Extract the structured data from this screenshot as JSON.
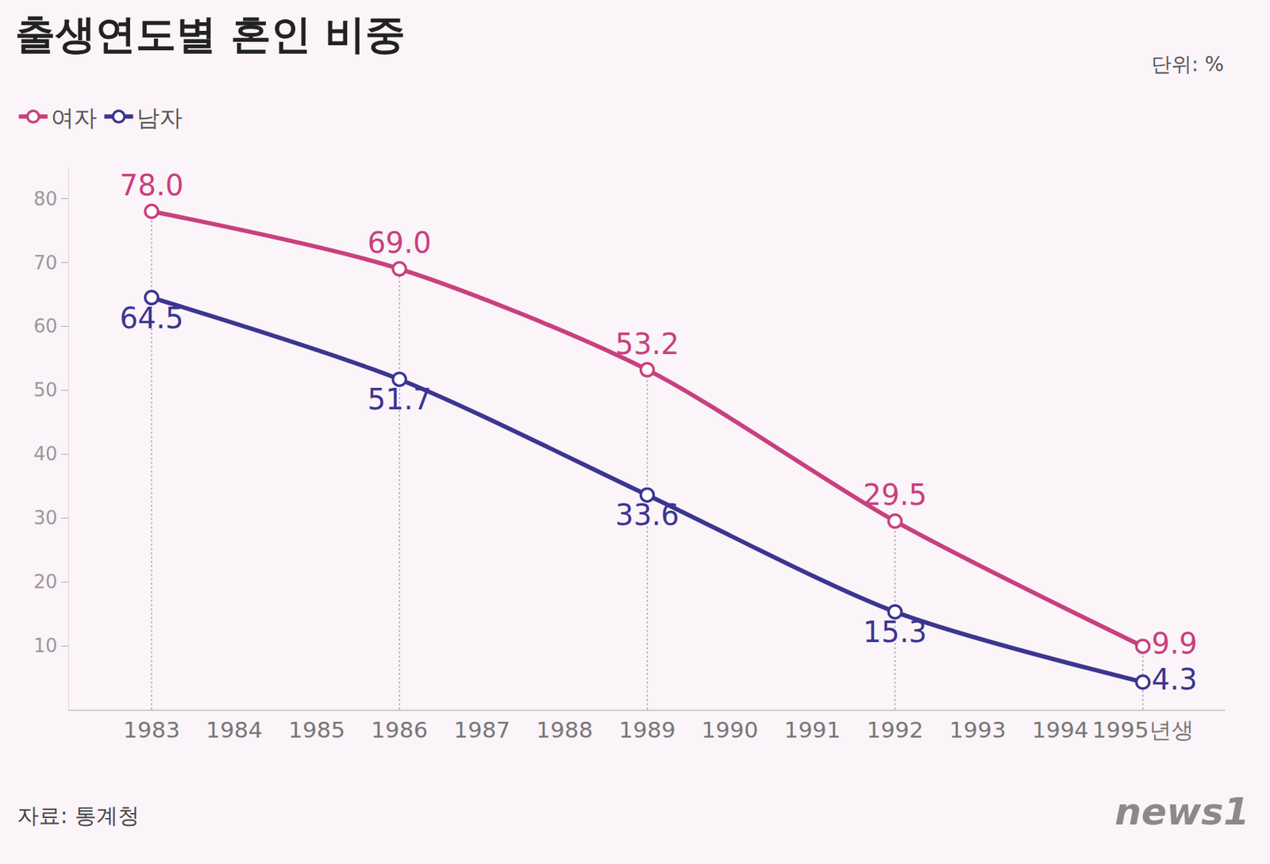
{
  "chart_data": {
    "type": "line",
    "title": "출생연도별 혼인 비중",
    "unit": "단위: %",
    "source": "자료: 통계청",
    "logo": "news1",
    "x": [
      1983,
      1986,
      1989,
      1992,
      1995
    ],
    "xlim": [
      1982,
      1996
    ],
    "xticks": [
      1983,
      1984,
      1985,
      1986,
      1987,
      1988,
      1989,
      1990,
      1991,
      1992,
      1993,
      1994,
      {
        "value": 1995,
        "label": "1995년생"
      }
    ],
    "ylim": [
      0,
      85
    ],
    "yticks": [
      10,
      20,
      30,
      40,
      50,
      60,
      70,
      80
    ],
    "grid": false,
    "legend": "top left",
    "data_labels": true,
    "marker": "circle",
    "series": [
      {
        "name": "여자",
        "color": "#c8407f",
        "values": [
          78.0,
          69.0,
          53.2,
          29.5,
          9.9
        ],
        "value_labels": [
          "78.0",
          "69.0",
          "53.2",
          "29.5",
          "9.9"
        ]
      },
      {
        "name": "남자",
        "color": "#3c3590",
        "values": [
          64.5,
          51.7,
          33.6,
          15.3,
          4.3
        ]
      }
    ]
  }
}
